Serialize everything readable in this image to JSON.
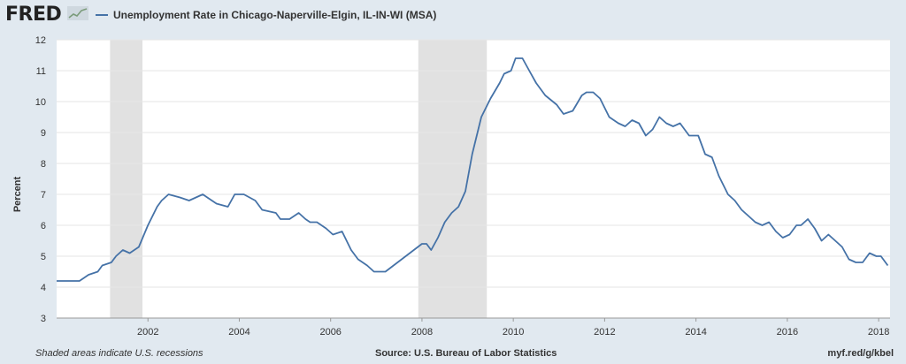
{
  "header": {
    "logo_text": "FRED",
    "legend_label": "Unemployment Rate in Chicago-Naperville-Elgin, IL-IN-WI (MSA)"
  },
  "footer": {
    "left": "Shaded areas indicate U.S. recessions",
    "source": "Source: U.S. Bureau of Labor Statistics",
    "url": "myf.red/g/kbel"
  },
  "colors": {
    "line": "#4572a7",
    "recession": "#e1e1e1",
    "grid": "#e6e6e6",
    "background": "#e1e9f0",
    "plot_bg": "#ffffff"
  },
  "icons": {
    "logo_graph": "line-graph-icon"
  },
  "chart_data": {
    "type": "line",
    "title": "Unemployment Rate in Chicago-Naperville-Elgin, IL-IN-WI (MSA)",
    "xlabel": "",
    "ylabel": "Percent",
    "xlim": [
      2000.0,
      2018.25
    ],
    "ylim": [
      3,
      12
    ],
    "yticks": [
      3,
      4,
      5,
      6,
      7,
      8,
      9,
      10,
      11,
      12
    ],
    "xticks": [
      2002,
      2004,
      2006,
      2008,
      2010,
      2012,
      2014,
      2016,
      2018
    ],
    "grid": true,
    "recessions": [
      [
        2001.17,
        2001.88
      ],
      [
        2007.92,
        2009.42
      ]
    ],
    "series": [
      {
        "name": "Unemployment Rate in Chicago-Naperville-Elgin, IL-IN-WI (MSA)",
        "x": [
          2000.0,
          2000.5,
          2000.6,
          2000.7,
          2000.9,
          2001.0,
          2001.2,
          2001.3,
          2001.45,
          2001.6,
          2001.8,
          2002.0,
          2002.2,
          2002.3,
          2002.45,
          2002.7,
          2002.9,
          2003.2,
          2003.3,
          2003.5,
          2003.75,
          2003.9,
          2004.1,
          2004.35,
          2004.5,
          2004.8,
          2004.9,
          2005.1,
          2005.3,
          2005.45,
          2005.55,
          2005.7,
          2005.9,
          2006.05,
          2006.25,
          2006.45,
          2006.6,
          2006.8,
          2006.95,
          2007.2,
          2008.0,
          2008.1,
          2008.2,
          2008.35,
          2008.5,
          2008.65,
          2008.8,
          2008.95,
          2009.1,
          2009.3,
          2009.5,
          2009.7,
          2009.8,
          2009.95,
          2010.05,
          2010.2,
          2010.35,
          2010.5,
          2010.7,
          2010.95,
          2011.1,
          2011.3,
          2011.5,
          2011.6,
          2011.75,
          2011.9,
          2012.1,
          2012.3,
          2012.45,
          2012.6,
          2012.75,
          2012.9,
          2013.05,
          2013.2,
          2013.35,
          2013.5,
          2013.65,
          2013.85,
          2014.05,
          2014.2,
          2014.35,
          2014.5,
          2014.7,
          2014.85,
          2015.0,
          2015.15,
          2015.3,
          2015.45,
          2015.6,
          2015.75,
          2015.9,
          2016.05,
          2016.2,
          2016.3,
          2016.45,
          2016.6,
          2016.75,
          2016.9,
          2017.05,
          2017.2,
          2017.35,
          2017.5,
          2017.65,
          2017.8,
          2017.95,
          2018.05,
          2018.2
        ],
        "values": [
          4.2,
          4.2,
          4.3,
          4.4,
          4.5,
          4.7,
          4.8,
          5.0,
          5.2,
          5.1,
          5.3,
          6.0,
          6.6,
          6.8,
          7.0,
          6.9,
          6.8,
          7.0,
          6.9,
          6.7,
          6.6,
          7.0,
          7.0,
          6.8,
          6.5,
          6.4,
          6.2,
          6.2,
          6.4,
          6.2,
          6.1,
          6.1,
          5.9,
          5.7,
          5.8,
          5.2,
          4.9,
          4.7,
          4.5,
          4.5,
          5.4,
          5.4,
          5.2,
          5.6,
          6.1,
          6.4,
          6.6,
          7.1,
          8.3,
          9.5,
          10.1,
          10.6,
          10.9,
          11.0,
          11.4,
          11.4,
          11.0,
          10.6,
          10.2,
          9.9,
          9.6,
          9.7,
          10.2,
          10.3,
          10.3,
          10.1,
          9.5,
          9.3,
          9.2,
          9.4,
          9.3,
          8.9,
          9.1,
          9.5,
          9.3,
          9.2,
          9.3,
          8.9,
          8.9,
          8.3,
          8.2,
          7.6,
          7.0,
          6.8,
          6.5,
          6.3,
          6.1,
          6.0,
          6.1,
          5.8,
          5.6,
          5.7,
          6.0,
          6.0,
          6.2,
          5.9,
          5.5,
          5.7,
          5.5,
          5.3,
          4.9,
          4.8,
          4.8,
          5.1,
          5.0,
          5.0,
          4.7
        ]
      }
    ]
  }
}
